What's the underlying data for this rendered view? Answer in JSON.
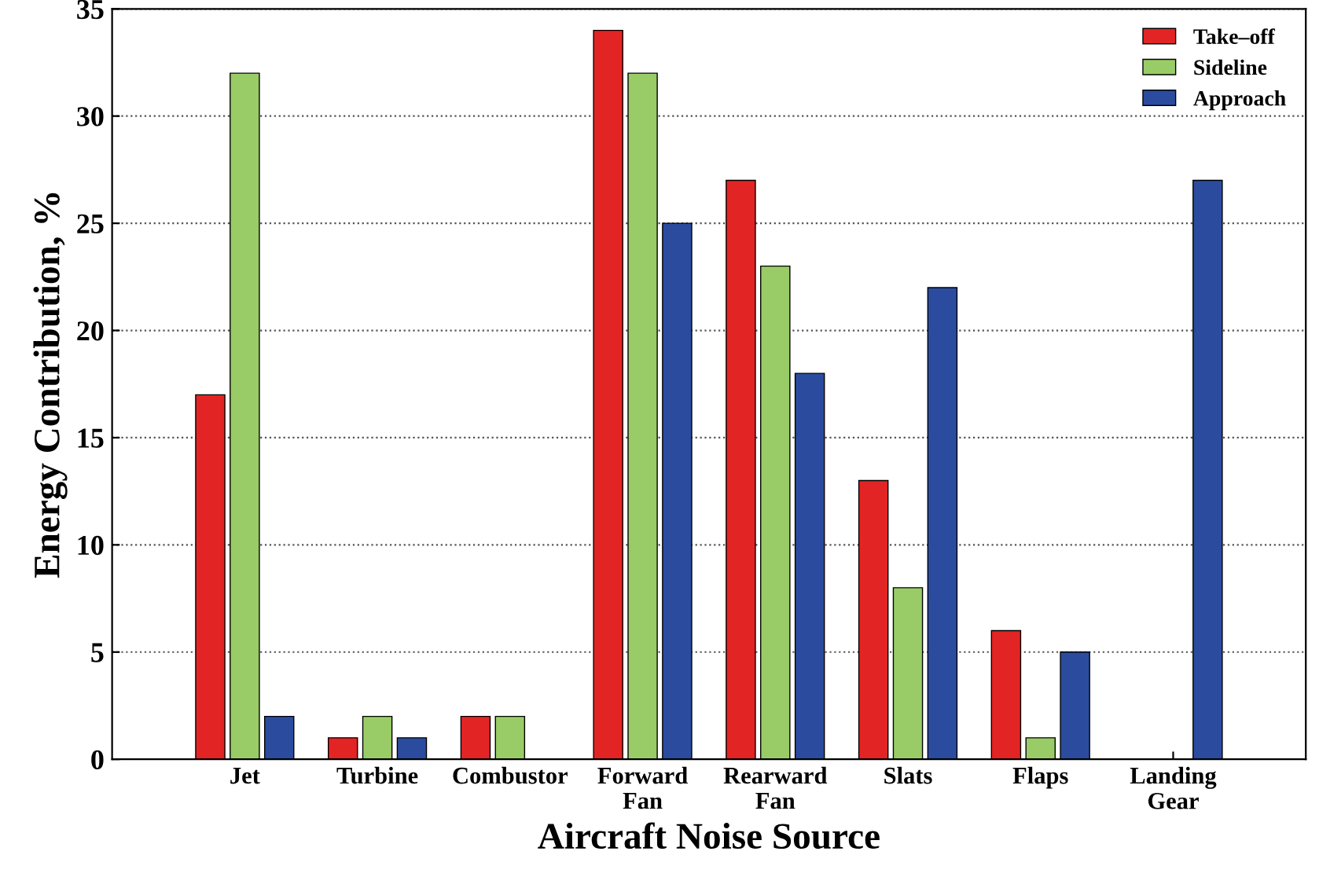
{
  "chart_data": {
    "type": "bar",
    "xlabel": "Aircraft Noise Source",
    "ylabel": "Energy Contribution, %",
    "categories": [
      "Jet",
      "Turbine",
      "Combustor",
      "Forward\nFan",
      "Rearward\nFan",
      "Slats",
      "Flaps",
      "Landing\nGear"
    ],
    "series": [
      {
        "name": "Take–off",
        "color": "#e32424",
        "values": [
          17,
          1,
          2,
          34,
          27,
          13,
          6,
          null
        ]
      },
      {
        "name": "Sideline",
        "color": "#99cc66",
        "values": [
          32,
          2,
          2,
          32,
          23,
          8,
          1,
          null
        ]
      },
      {
        "name": "Approach",
        "color": "#2b4c9e",
        "values": [
          2,
          1,
          null,
          25,
          18,
          22,
          5,
          27
        ]
      }
    ],
    "ylim": [
      0,
      35
    ],
    "yticks": [
      0,
      5,
      10,
      15,
      20,
      25,
      30,
      35
    ],
    "grid": "y",
    "legend": "top right"
  }
}
